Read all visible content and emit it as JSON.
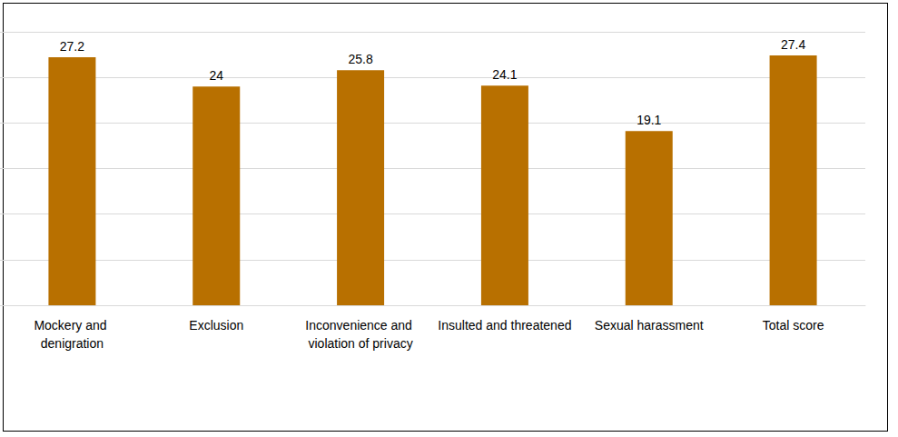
{
  "chart_data": {
    "type": "bar",
    "categories": [
      "Mockery and denigration",
      "Exclusion",
      "Inconvenience and violation of privacy",
      "Insulted and threatened",
      "Sexual harassment",
      "Total score"
    ],
    "values": [
      27.2,
      24,
      25.8,
      24.1,
      19.1,
      27.4
    ],
    "color": "#b87000",
    "ylim": [
      0,
      30
    ],
    "yticks": [
      0,
      5,
      10,
      15,
      20,
      25,
      30
    ],
    "grid": true,
    "data_labels": true,
    "tick_labels": "x"
  }
}
